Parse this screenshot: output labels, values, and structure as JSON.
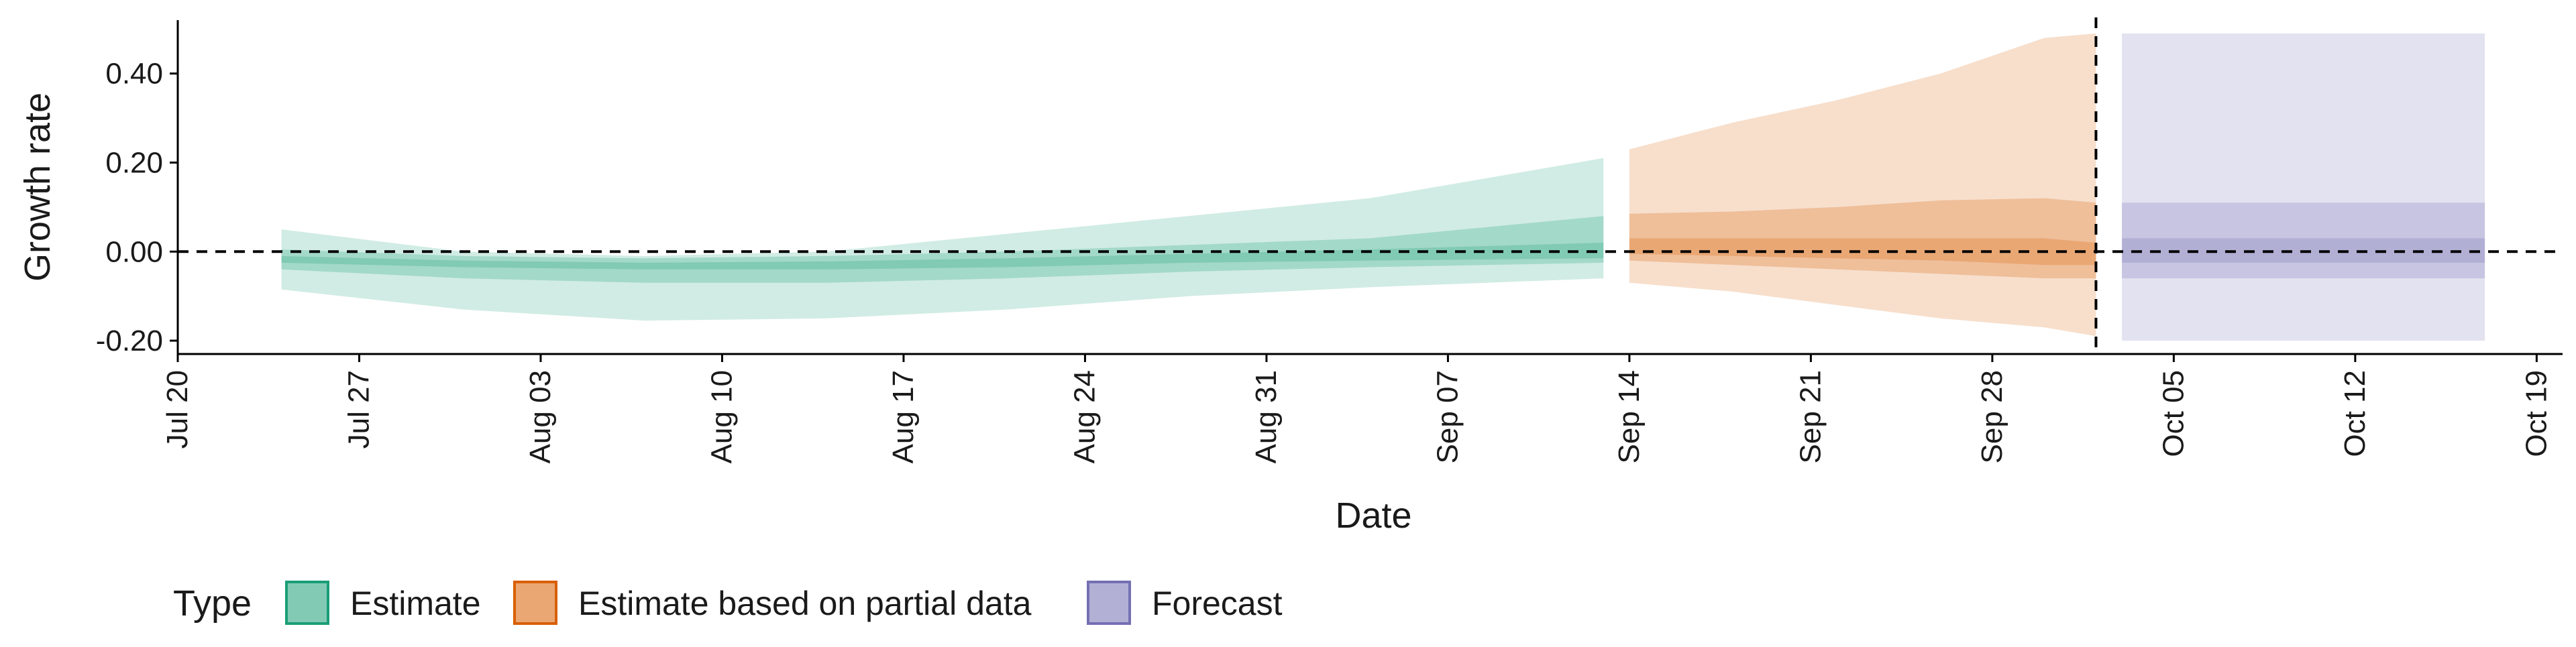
{
  "chart_data": {
    "type": "area",
    "xlabel": "Date",
    "ylabel": "Growth rate",
    "x_ticks": [
      "Jul 20",
      "Jul 27",
      "Aug 03",
      "Aug 10",
      "Aug 17",
      "Aug 24",
      "Aug 31",
      "Sep 07",
      "Sep 14",
      "Sep 21",
      "Sep 28",
      "Oct 05",
      "Oct 12",
      "Oct 19"
    ],
    "x_tick_dates": [
      "2020-07-20",
      "2020-07-27",
      "2020-08-03",
      "2020-08-10",
      "2020-08-17",
      "2020-08-24",
      "2020-08-31",
      "2020-09-07",
      "2020-09-14",
      "2020-09-21",
      "2020-09-28",
      "2020-10-05",
      "2020-10-12",
      "2020-10-19"
    ],
    "xlim": [
      "2020-07-20",
      "2020-10-20"
    ],
    "y_ticks": [
      "-0.20",
      "0.00",
      "0.20",
      "0.40"
    ],
    "y_tick_values": [
      -0.2,
      0.0,
      0.2,
      0.4
    ],
    "ylim": [
      -0.23,
      0.52
    ],
    "hline": 0.0,
    "vline": "2020-10-02",
    "legend": {
      "title": "Type",
      "position": "bottom-left"
    },
    "series": [
      {
        "name": "Estimate",
        "color": "#1b9e77",
        "x": [
          "2020-07-24",
          "2020-07-31",
          "2020-08-07",
          "2020-08-14",
          "2020-08-21",
          "2020-08-28",
          "2020-09-04",
          "2020-09-13"
        ],
        "outer_lower": [
          -0.085,
          -0.13,
          -0.155,
          -0.15,
          -0.13,
          -0.1,
          -0.08,
          -0.06
        ],
        "outer_upper": [
          0.05,
          0.0,
          -0.01,
          0.0,
          0.04,
          0.08,
          0.12,
          0.21
        ],
        "mid_lower": [
          -0.04,
          -0.06,
          -0.07,
          -0.07,
          -0.06,
          -0.045,
          -0.035,
          -0.025
        ],
        "mid_upper": [
          0.005,
          -0.01,
          -0.015,
          -0.01,
          0.0,
          0.015,
          0.03,
          0.08
        ],
        "inner_lower": [
          -0.025,
          -0.035,
          -0.04,
          -0.04,
          -0.035,
          -0.025,
          -0.02,
          -0.015
        ],
        "inner_upper": [
          -0.01,
          -0.02,
          -0.025,
          -0.022,
          -0.015,
          -0.005,
          0.005,
          0.02
        ]
      },
      {
        "name": "Estimate based on partial data",
        "color": "#d95f02",
        "x": [
          "2020-09-14",
          "2020-09-18",
          "2020-09-22",
          "2020-09-26",
          "2020-09-30",
          "2020-10-02"
        ],
        "outer_lower": [
          -0.07,
          -0.09,
          -0.12,
          -0.15,
          -0.17,
          -0.19
        ],
        "outer_upper": [
          0.23,
          0.29,
          0.34,
          0.4,
          0.48,
          0.49
        ],
        "mid_lower": [
          -0.02,
          -0.03,
          -0.04,
          -0.05,
          -0.06,
          -0.06
        ],
        "mid_upper": [
          0.085,
          0.09,
          0.1,
          0.115,
          0.12,
          0.11
        ],
        "inner_lower": [
          -0.005,
          -0.01,
          -0.015,
          -0.02,
          -0.03,
          -0.03
        ],
        "inner_upper": [
          0.03,
          0.03,
          0.03,
          0.03,
          0.03,
          0.02
        ]
      },
      {
        "name": "Forecast",
        "color": "#7570b3",
        "x": [
          "2020-10-03",
          "2020-10-17"
        ],
        "outer_lower": [
          -0.2,
          -0.2
        ],
        "outer_upper": [
          0.49,
          0.49
        ],
        "mid_lower": [
          -0.06,
          -0.06
        ],
        "mid_upper": [
          0.11,
          0.11
        ],
        "inner_lower": [
          -0.025,
          -0.025
        ],
        "inner_upper": [
          0.03,
          0.03
        ]
      }
    ]
  }
}
